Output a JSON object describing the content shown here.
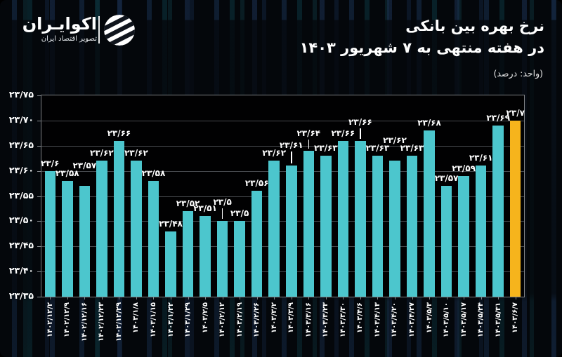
{
  "header": {
    "logo": {
      "name": "اکوایـران",
      "tagline": "تصویر اقتصاد ایران"
    },
    "title_line1": "نرخ بهره بین بانکی",
    "title_line2": "در هفته منتهی به ۷ شهریور ۱۴۰۳",
    "unit_label": "(واحد: درصد)"
  },
  "chart_data": {
    "type": "bar",
    "title": "نرخ بهره بین بانکی در هفته منتهی به ۷ شهریور ۱۴۰۳",
    "unit": "درصد",
    "ylim": [
      23.35,
      23.75
    ],
    "ytick_step": 0.05,
    "ytick_labels": [
      "۲۳/۷۵",
      "۲۳/۷۰",
      "۲۳/۶۵",
      "۲۳/۶۰",
      "۲۳/۵۵",
      "۲۳/۵۰",
      "۲۳/۴۵",
      "۲۳/۴۰",
      "۲۳/۳۵"
    ],
    "grid": true,
    "categories": [
      "۱۴۰۲/۱۲/۲",
      "۱۴۰۲/۱۲/۹",
      "۱۴۰۲/۱۲/۱۶",
      "۱۴۰۲/۱۲/۲۳",
      "۱۴۰۲/۱۲/۲۹",
      "۱۴۰۳/۱/۸",
      "۱۴۰۳/۱/۱۵",
      "۱۴۰۳/۱/۲۲",
      "۱۴۰۳/۱/۲۹",
      "۱۴۰۳/۲/۵",
      "۱۴۰۳/۲/۱۲",
      "۱۴۰۳/۲/۱۹",
      "۱۴۰۳/۲/۲۶",
      "۱۴۰۳/۳/۲",
      "۱۴۰۳/۳/۹",
      "۱۴۰۳/۳/۱۶",
      "۱۴۰۳/۳/۲۳",
      "۱۴۰۳/۳/۳۰",
      "۱۴۰۳/۴/۶",
      "۱۴۰۳/۴/۱۳",
      "۱۴۰۳/۴/۲۰",
      "۱۴۰۳/۴/۲۷",
      "۱۴۰۳/۵/۳",
      "۱۴۰۳/۵/۱۰",
      "۱۴۰۳/۵/۱۷",
      "۱۴۰۳/۵/۲۴",
      "۱۴۰۳/۵/۳۱",
      "۱۴۰۳/۶/۷"
    ],
    "values": [
      23.6,
      23.58,
      23.57,
      23.62,
      23.66,
      23.62,
      23.58,
      23.48,
      23.52,
      23.51,
      23.5,
      23.5,
      23.56,
      23.62,
      23.61,
      23.64,
      23.63,
      23.66,
      23.66,
      23.63,
      23.62,
      23.63,
      23.68,
      23.57,
      23.59,
      23.61,
      23.69,
      23.7
    ],
    "value_labels": [
      "۲۳/۶",
      "۲۳/۵۸",
      "۲۳/۵۷",
      "۲۳/۶۲",
      "۲۳/۶۶",
      "۲۳/۶۲",
      "۲۳/۵۸",
      "۲۳/۴۸",
      "۲۳/۵۲",
      "۲۳/۵۱",
      "۲۳/۵",
      "۲۳/۵",
      "۲۳/۵۶",
      "۲۳/۶۲",
      "۲۳/۶۱",
      "۲۳/۶۴",
      "۲۳/۶۳",
      "۲۳/۶۶",
      "۲۳/۶۶",
      "۲۳/۶۳",
      "۲۳/۶۲",
      "۲۳/۶۳",
      "۲۳/۶۸",
      "۲۳/۵۷",
      "۲۳/۵۹",
      "۲۳/۶۱",
      "۲۳/۶۹",
      "۲۳/۷"
    ],
    "bar_color": "#4cc6cd",
    "highlight_color": "#f6b41c",
    "highlight_index": 27,
    "background_color": "#04070b",
    "plot_background_color": "#010102",
    "gridline_color": "#46494d",
    "text_color": "#ffffff"
  }
}
